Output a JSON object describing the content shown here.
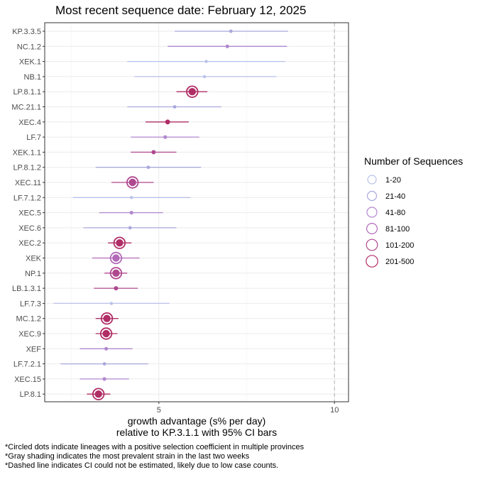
{
  "chart_data": {
    "type": "scatter",
    "title": "Most recent sequence date: February 12, 2025",
    "xlabel_line1": "growth advantage (s% per day)",
    "xlabel_line2": "relative to  KP.3.1.1  with 95% CI bars",
    "ylabel": "",
    "xlim": [
      1.75,
      10.4
    ],
    "x_ticks": [
      {
        "value": 5,
        "label": "5"
      },
      {
        "value": 10,
        "label": "10"
      }
    ],
    "x_minor_ticks": [
      2.5,
      7.5
    ],
    "reference_line": {
      "x": 10,
      "style": "dashed"
    },
    "grid": true,
    "legend": {
      "title": "Number of Sequences",
      "placement": "right",
      "entries": [
        {
          "label": "1-20",
          "color": "#b9c1ea"
        },
        {
          "label": "21-40",
          "color": "#a9a8dc"
        },
        {
          "label": "41-80",
          "color": "#b188cf"
        },
        {
          "label": "81-100",
          "color": "#b26ab8"
        },
        {
          "label": "101-200",
          "color": "#b0488f"
        },
        {
          "label": "201-500",
          "color": "#b02d66"
        }
      ]
    },
    "series": [
      {
        "lineage": "KP.3.3.5",
        "x": 7.05,
        "ci": [
          5.45,
          8.68
        ],
        "seq_bin": "21-40",
        "circled": false
      },
      {
        "lineage": "NC.1.2",
        "x": 6.95,
        "ci": [
          5.25,
          8.65
        ],
        "seq_bin": "41-80",
        "circled": false
      },
      {
        "lineage": "XEK.1",
        "x": 6.35,
        "ci": [
          4.1,
          8.6
        ],
        "seq_bin": "1-20",
        "circled": false
      },
      {
        "lineage": "NB.1",
        "x": 6.3,
        "ci": [
          4.3,
          8.35
        ],
        "seq_bin": "1-20",
        "circled": false
      },
      {
        "lineage": "LP.8.1.1",
        "x": 5.95,
        "ci": [
          5.5,
          6.38
        ],
        "seq_bin": "201-500",
        "circled": true
      },
      {
        "lineage": "MC.21.1",
        "x": 5.45,
        "ci": [
          4.1,
          6.78
        ],
        "seq_bin": "21-40",
        "circled": false
      },
      {
        "lineage": "XEC.4",
        "x": 5.25,
        "ci": [
          4.62,
          5.85
        ],
        "seq_bin": "201-500",
        "circled": false
      },
      {
        "lineage": "LF.7",
        "x": 5.18,
        "ci": [
          4.2,
          6.15
        ],
        "seq_bin": "41-80",
        "circled": false
      },
      {
        "lineage": "XEK.1.1",
        "x": 4.85,
        "ci": [
          4.2,
          5.5
        ],
        "seq_bin": "101-200",
        "circled": false
      },
      {
        "lineage": "LP.8.1.2",
        "x": 4.7,
        "ci": [
          3.2,
          6.2
        ],
        "seq_bin": "21-40",
        "circled": false
      },
      {
        "lineage": "XEC.11",
        "x": 4.25,
        "ci": [
          3.65,
          4.85
        ],
        "seq_bin": "101-200",
        "circled": true
      },
      {
        "lineage": "LF.7.1.2",
        "x": 4.22,
        "ci": [
          2.55,
          5.9
        ],
        "seq_bin": "1-20",
        "circled": false
      },
      {
        "lineage": "XEC.5",
        "x": 4.22,
        "ci": [
          3.3,
          5.12
        ],
        "seq_bin": "41-80",
        "circled": false
      },
      {
        "lineage": "XEC.6",
        "x": 4.18,
        "ci": [
          2.85,
          5.5
        ],
        "seq_bin": "21-40",
        "circled": false
      },
      {
        "lineage": "XEC.2",
        "x": 3.88,
        "ci": [
          3.55,
          4.22
        ],
        "seq_bin": "201-500",
        "circled": true
      },
      {
        "lineage": "XEK",
        "x": 3.78,
        "ci": [
          3.1,
          4.45
        ],
        "seq_bin": "81-100",
        "circled": true
      },
      {
        "lineage": "NP.1",
        "x": 3.78,
        "ci": [
          3.45,
          4.1
        ],
        "seq_bin": "101-200",
        "circled": true
      },
      {
        "lineage": "LB.1.3.1",
        "x": 3.78,
        "ci": [
          3.15,
          4.4
        ],
        "seq_bin": "101-200",
        "circled": false
      },
      {
        "lineage": "LF.7.3",
        "x": 3.65,
        "ci": [
          2.0,
          5.3
        ],
        "seq_bin": "1-20",
        "circled": false
      },
      {
        "lineage": "MC.1.2",
        "x": 3.52,
        "ci": [
          3.2,
          3.85
        ],
        "seq_bin": "201-500",
        "circled": true
      },
      {
        "lineage": "XEC.9",
        "x": 3.5,
        "ci": [
          3.2,
          3.82
        ],
        "seq_bin": "201-500",
        "circled": true
      },
      {
        "lineage": "XEF",
        "x": 3.5,
        "ci": [
          2.75,
          4.25
        ],
        "seq_bin": "41-80",
        "circled": false
      },
      {
        "lineage": "LF.7.2.1",
        "x": 3.45,
        "ci": [
          2.2,
          4.7
        ],
        "seq_bin": "21-40",
        "circled": false
      },
      {
        "lineage": "XEC.15",
        "x": 3.45,
        "ci": [
          2.75,
          4.15
        ],
        "seq_bin": "41-80",
        "circled": false
      },
      {
        "lineage": "LP.8.1",
        "x": 3.28,
        "ci": [
          2.95,
          3.62
        ],
        "seq_bin": "201-500",
        "circled": true
      }
    ]
  },
  "footnotes": [
    "*Circled dots indicate lineages with a positive selection coefficient in multiple provinces",
    "*Gray shading indicates the most prevalent strain in the last two weeks",
    "*Dashed line indicates CI could not be estimated, likely due to low case counts."
  ]
}
